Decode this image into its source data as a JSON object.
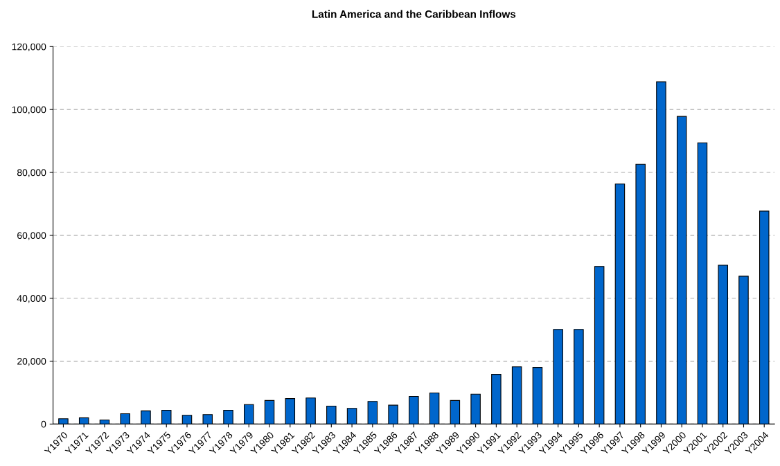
{
  "chart_data": {
    "type": "bar",
    "title": "Latin America and the Caribbean Inflows",
    "categories": [
      "Y1970",
      "Y1971",
      "Y1972",
      "Y1973",
      "Y1974",
      "Y1975",
      "Y1976",
      "Y1977",
      "Y1978",
      "Y1979",
      "Y1980",
      "Y1981",
      "Y1982",
      "Y1983",
      "Y1984",
      "Y1985",
      "Y1986",
      "Y1987",
      "Y1988",
      "Y1989",
      "Y1990",
      "Y1991",
      "Y1992",
      "Y1993",
      "Y1994",
      "Y1995",
      "Y1996",
      "Y1997",
      "Y1998",
      "Y1999",
      "Y2000",
      "Y2001",
      "Y2002",
      "Y2003",
      "Y2004"
    ],
    "values": [
      1700,
      2000,
      1300,
      3300,
      4200,
      4400,
      2800,
      3000,
      4400,
      6200,
      7500,
      8100,
      8300,
      5700,
      5000,
      7200,
      6000,
      8800,
      9900,
      7500,
      9500,
      15800,
      18200,
      18000,
      30100,
      30100,
      50100,
      76300,
      82600,
      108800,
      97800,
      89400,
      50500,
      47000,
      67700
    ],
    "color": "#0066cc",
    "ylim": [
      0,
      120000
    ],
    "yticks": [
      {
        "value": 0,
        "label": "0"
      },
      {
        "value": 20000,
        "label": "20,000"
      },
      {
        "value": 40000,
        "label": "40,000"
      },
      {
        "value": 60000,
        "label": "60,000"
      },
      {
        "value": 80000,
        "label": "80,000"
      },
      {
        "value": 100000,
        "label": "100,000"
      },
      {
        "value": 120000,
        "label": "120,000"
      }
    ],
    "grid": "y"
  }
}
